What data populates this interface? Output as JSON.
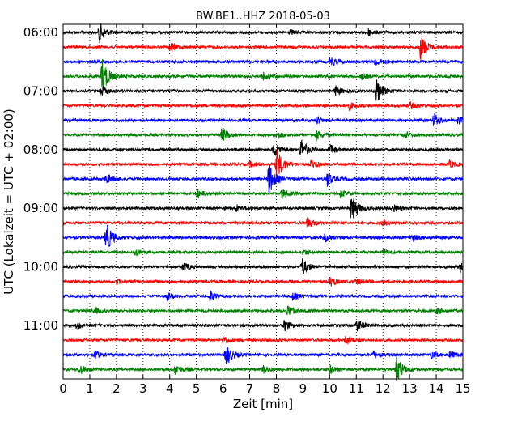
{
  "chart_data": {
    "type": "line",
    "title": "BW.BE1..HHZ 2018-05-03",
    "xlabel": "Zeit  [min]",
    "ylabel": "UTC (Lokalzeit = UTC + 02:00)",
    "xlim": [
      0,
      15
    ],
    "x_ticks": [
      "0",
      "1",
      "2",
      "3",
      "4",
      "5",
      "6",
      "7",
      "8",
      "9",
      "10",
      "11",
      "12",
      "13",
      "14",
      "15"
    ],
    "y_tick_labels": [
      "06:00",
      "07:00",
      "08:00",
      "09:00",
      "10:00",
      "11:00"
    ],
    "grid": "vertical dotted",
    "trace_colors": [
      "#000000",
      "#ff0000",
      "#0000ff",
      "#008000"
    ],
    "traces": [
      {
        "start": "06:00",
        "color": "#000000",
        "events": [
          {
            "t": 1.35,
            "amp": 1.2
          },
          {
            "t": 8.5,
            "amp": 0.3
          },
          {
            "t": 11.4,
            "amp": 0.5
          }
        ]
      },
      {
        "start": "06:15",
        "color": "#ff0000",
        "events": [
          {
            "t": 4.0,
            "amp": 0.5
          },
          {
            "t": 13.4,
            "amp": 1.6
          }
        ]
      },
      {
        "start": "06:30",
        "color": "#0000ff",
        "events": [
          {
            "t": 10.0,
            "amp": 0.6
          },
          {
            "t": 11.7,
            "amp": 0.5
          }
        ]
      },
      {
        "start": "06:45",
        "color": "#008000",
        "events": [
          {
            "t": 1.45,
            "amp": 2.2
          },
          {
            "t": 7.5,
            "amp": 0.4
          },
          {
            "t": 11.2,
            "amp": 0.3
          }
        ]
      },
      {
        "start": "07:00",
        "color": "#000000",
        "events": [
          {
            "t": 1.4,
            "amp": 0.6
          },
          {
            "t": 10.2,
            "amp": 0.6
          },
          {
            "t": 11.75,
            "amp": 1.4
          }
        ]
      },
      {
        "start": "07:15",
        "color": "#ff0000",
        "events": [
          {
            "t": 10.7,
            "amp": 0.5
          },
          {
            "t": 13.0,
            "amp": 0.4
          }
        ]
      },
      {
        "start": "07:30",
        "color": "#0000ff",
        "events": [
          {
            "t": 9.5,
            "amp": 0.4
          },
          {
            "t": 13.9,
            "amp": 0.9
          },
          {
            "t": 14.8,
            "amp": 0.4
          }
        ]
      },
      {
        "start": "07:45",
        "color": "#008000",
        "events": [
          {
            "t": 5.95,
            "amp": 0.9
          },
          {
            "t": 8.0,
            "amp": 0.5
          },
          {
            "t": 9.5,
            "amp": 0.6
          },
          {
            "t": 12.8,
            "amp": 0.4
          }
        ]
      },
      {
        "start": "08:00",
        "color": "#000000",
        "events": [
          {
            "t": 7.9,
            "amp": 0.9
          },
          {
            "t": 8.9,
            "amp": 1.4
          },
          {
            "t": 10.0,
            "amp": 0.5
          }
        ]
      },
      {
        "start": "08:15",
        "color": "#ff0000",
        "events": [
          {
            "t": 7.0,
            "amp": 0.3
          },
          {
            "t": 8.0,
            "amp": 2.0
          },
          {
            "t": 9.3,
            "amp": 0.5
          },
          {
            "t": 14.5,
            "amp": 0.4
          }
        ]
      },
      {
        "start": "08:30",
        "color": "#0000ff",
        "events": [
          {
            "t": 1.6,
            "amp": 0.6
          },
          {
            "t": 7.7,
            "amp": 2.0
          },
          {
            "t": 9.9,
            "amp": 0.9
          }
        ]
      },
      {
        "start": "08:45",
        "color": "#008000",
        "events": [
          {
            "t": 5.0,
            "amp": 0.5
          },
          {
            "t": 8.2,
            "amp": 0.6
          },
          {
            "t": 10.4,
            "amp": 0.4
          }
        ]
      },
      {
        "start": "09:00",
        "color": "#000000",
        "events": [
          {
            "t": 6.5,
            "amp": 0.4
          },
          {
            "t": 10.8,
            "amp": 1.8
          },
          {
            "t": 12.4,
            "amp": 0.4
          }
        ]
      },
      {
        "start": "09:15",
        "color": "#ff0000",
        "events": [
          {
            "t": 9.15,
            "amp": 0.6
          },
          {
            "t": 12.0,
            "amp": 0.3
          }
        ]
      },
      {
        "start": "09:30",
        "color": "#0000ff",
        "events": [
          {
            "t": 1.6,
            "amp": 1.8
          },
          {
            "t": 9.8,
            "amp": 0.5
          },
          {
            "t": 13.1,
            "amp": 0.4
          }
        ]
      },
      {
        "start": "09:45",
        "color": "#008000",
        "events": [
          {
            "t": 2.7,
            "amp": 0.4
          },
          {
            "t": 9.0,
            "amp": 0.3
          },
          {
            "t": 12.0,
            "amp": 0.3
          }
        ]
      },
      {
        "start": "10:00",
        "color": "#000000",
        "events": [
          {
            "t": 4.5,
            "amp": 0.5
          },
          {
            "t": 8.95,
            "amp": 1.1
          },
          {
            "t": 14.9,
            "amp": 0.6
          }
        ]
      },
      {
        "start": "10:15",
        "color": "#ff0000",
        "events": [
          {
            "t": 2.0,
            "amp": 0.3
          },
          {
            "t": 10.0,
            "amp": 0.6
          },
          {
            "t": 11.0,
            "amp": 0.3
          }
        ]
      },
      {
        "start": "10:30",
        "color": "#0000ff",
        "events": [
          {
            "t": 3.9,
            "amp": 0.4
          },
          {
            "t": 5.5,
            "amp": 0.6
          },
          {
            "t": 8.6,
            "amp": 0.4
          }
        ]
      },
      {
        "start": "10:45",
        "color": "#008000",
        "events": [
          {
            "t": 1.2,
            "amp": 0.3
          },
          {
            "t": 8.4,
            "amp": 0.7
          },
          {
            "t": 14.0,
            "amp": 0.3
          }
        ]
      },
      {
        "start": "11:00",
        "color": "#000000",
        "events": [
          {
            "t": 0.5,
            "amp": 0.4
          },
          {
            "t": 8.3,
            "amp": 0.6
          },
          {
            "t": 11.0,
            "amp": 0.7
          }
        ]
      },
      {
        "start": "11:15",
        "color": "#ff0000",
        "events": [
          {
            "t": 6.0,
            "amp": 0.5
          },
          {
            "t": 10.6,
            "amp": 0.6
          }
        ]
      },
      {
        "start": "11:30",
        "color": "#0000ff",
        "events": [
          {
            "t": 1.2,
            "amp": 0.4
          },
          {
            "t": 6.1,
            "amp": 1.4
          },
          {
            "t": 11.6,
            "amp": 0.5
          },
          {
            "t": 13.8,
            "amp": 0.4
          },
          {
            "t": 14.5,
            "amp": 0.4
          }
        ]
      },
      {
        "start": "11:45",
        "color": "#008000",
        "events": [
          {
            "t": 0.6,
            "amp": 0.6
          },
          {
            "t": 4.2,
            "amp": 0.6
          },
          {
            "t": 7.5,
            "amp": 0.5
          },
          {
            "t": 10.0,
            "amp": 0.5
          },
          {
            "t": 12.5,
            "amp": 1.6
          }
        ]
      }
    ]
  }
}
